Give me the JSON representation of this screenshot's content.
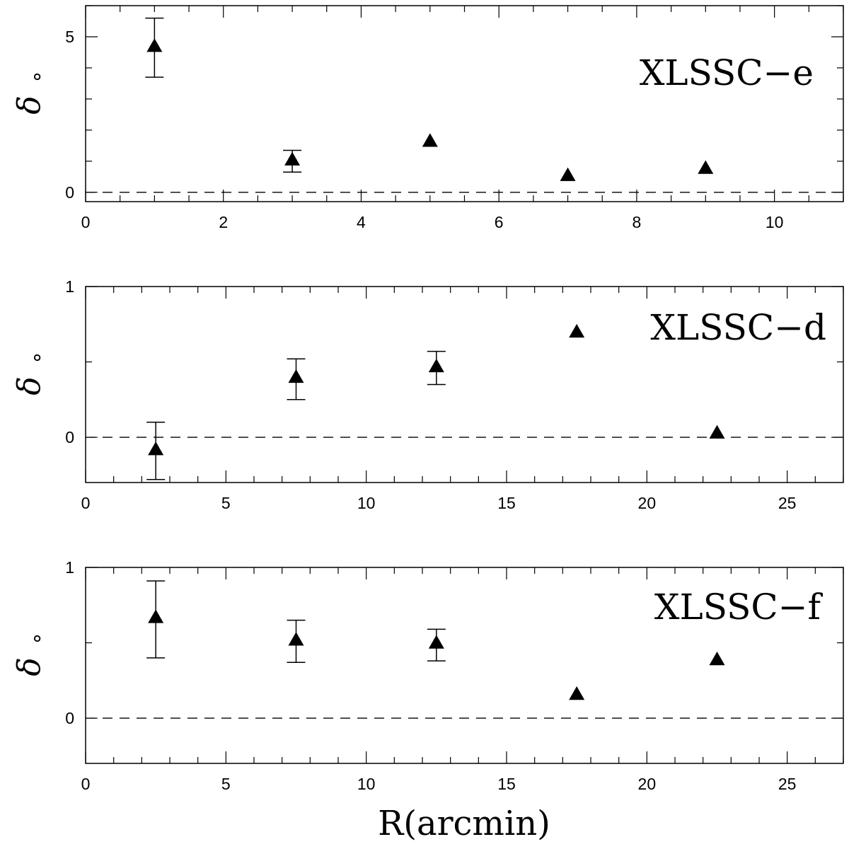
{
  "chart_data": [
    {
      "type": "scatter",
      "panel_label": "XLSSC−e",
      "ylabel": "δ",
      "ylabel_sub": "∘",
      "xlabel": "",
      "xlim": [
        0,
        11
      ],
      "ylim": [
        -0.3,
        6
      ],
      "xticks": [
        0,
        2,
        4,
        6,
        8,
        10
      ],
      "xtick_labels": [
        "0",
        "2",
        "4",
        "6",
        "8",
        "10"
      ],
      "xminor_step": 0.5,
      "yticks": [
        0,
        5
      ],
      "ytick_labels": [
        "0",
        "5"
      ],
      "yminor_step": 1,
      "reference_line": 0,
      "points": [
        {
          "x": 1,
          "y": 4.7,
          "err_low": 3.7,
          "err_high": 5.6
        },
        {
          "x": 3,
          "y": 1.05,
          "err_low": 0.65,
          "err_high": 1.35
        },
        {
          "x": 5,
          "y": 1.65
        },
        {
          "x": 7,
          "y": 0.55
        },
        {
          "x": 9,
          "y": 0.78
        }
      ]
    },
    {
      "type": "scatter",
      "panel_label": "XLSSC−d",
      "ylabel": "δ",
      "ylabel_sub": "∘",
      "xlabel": "",
      "xlim": [
        0,
        27
      ],
      "ylim": [
        -0.3,
        1
      ],
      "xticks": [
        0,
        5,
        10,
        15,
        20,
        25
      ],
      "xtick_labels": [
        "0",
        "5",
        "10",
        "15",
        "20",
        "25"
      ],
      "xminor_step": 1,
      "yticks": [
        0,
        1
      ],
      "ytick_labels": [
        "0",
        "1"
      ],
      "yminor_step": 0.5,
      "reference_line": 0,
      "points": [
        {
          "x": 2.5,
          "y": -0.08,
          "err_low": -0.28,
          "err_high": 0.1
        },
        {
          "x": 7.5,
          "y": 0.4,
          "err_low": 0.25,
          "err_high": 0.52
        },
        {
          "x": 12.5,
          "y": 0.47,
          "err_low": 0.35,
          "err_high": 0.57
        },
        {
          "x": 17.5,
          "y": 0.7
        },
        {
          "x": 22.5,
          "y": 0.03
        }
      ]
    },
    {
      "type": "scatter",
      "panel_label": "XLSSC−f",
      "ylabel": "δ",
      "ylabel_sub": "∘",
      "xlabel": "R(arcmin)",
      "xlim": [
        0,
        27
      ],
      "ylim": [
        -0.3,
        1
      ],
      "xticks": [
        0,
        5,
        10,
        15,
        20,
        25
      ],
      "xtick_labels": [
        "0",
        "5",
        "10",
        "15",
        "20",
        "25"
      ],
      "xminor_step": 1,
      "yticks": [
        0,
        1
      ],
      "ytick_labels": [
        "0",
        "1"
      ],
      "yminor_step": 0.5,
      "reference_line": 0,
      "points": [
        {
          "x": 2.5,
          "y": 0.67,
          "err_low": 0.4,
          "err_high": 0.91
        },
        {
          "x": 7.5,
          "y": 0.52,
          "err_low": 0.37,
          "err_high": 0.65
        },
        {
          "x": 12.5,
          "y": 0.5,
          "err_low": 0.38,
          "err_high": 0.59
        },
        {
          "x": 17.5,
          "y": 0.16
        },
        {
          "x": 22.5,
          "y": 0.39
        }
      ]
    }
  ]
}
